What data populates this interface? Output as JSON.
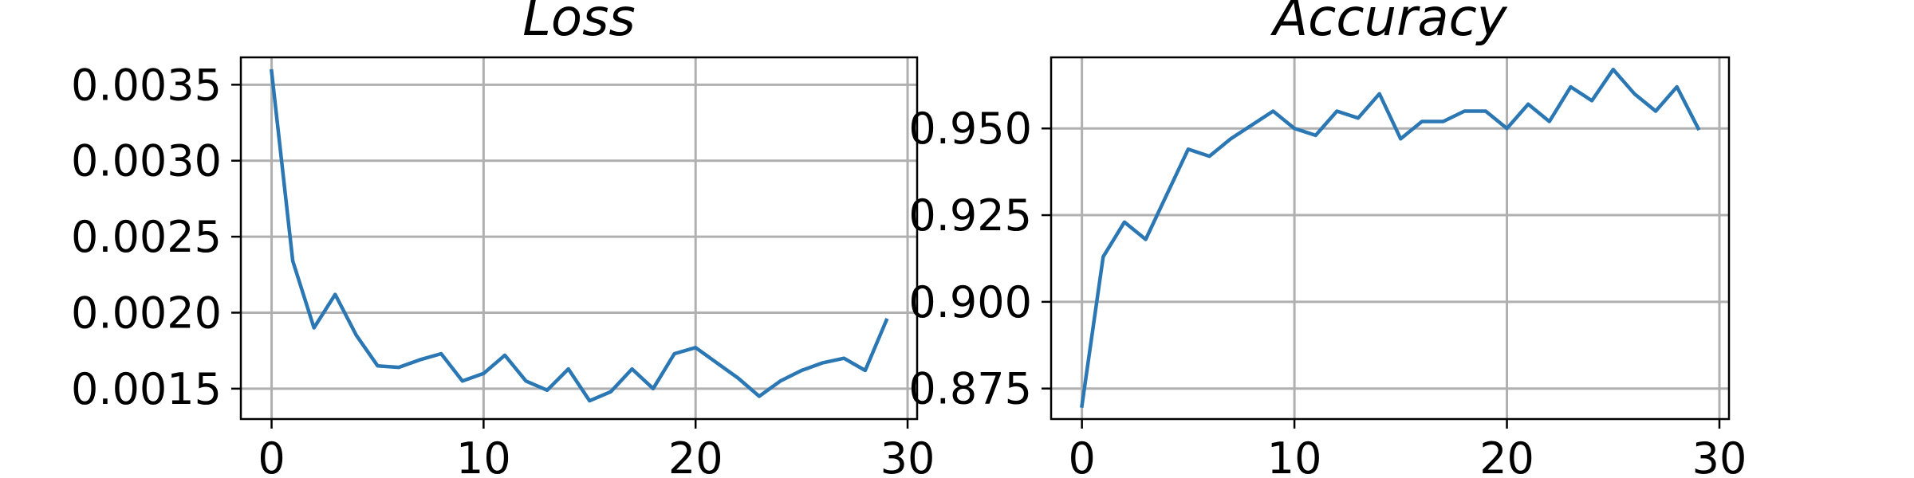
{
  "chart_data": [
    {
      "type": "line",
      "title": "Loss",
      "xlabel": "",
      "ylabel": "",
      "grid": true,
      "color": "#2a77b4",
      "xlim": [
        -1.45,
        30.45
      ],
      "ylim": [
        0.0013,
        0.00368
      ],
      "xticks": [
        0,
        10,
        20,
        30
      ],
      "xtick_labels": [
        "0",
        "10",
        "20",
        "30"
      ],
      "yticks": [
        0.0015,
        0.002,
        0.0025,
        0.003,
        0.0035
      ],
      "ytick_labels": [
        "0.0015",
        "0.0020",
        "0.0025",
        "0.0030",
        "0.0035"
      ],
      "x": [
        0,
        1,
        2,
        3,
        4,
        5,
        6,
        7,
        8,
        9,
        10,
        11,
        12,
        13,
        14,
        15,
        16,
        17,
        18,
        19,
        20,
        21,
        22,
        23,
        24,
        25,
        26,
        27,
        28,
        29
      ],
      "y": [
        0.00359,
        0.00234,
        0.0019,
        0.00212,
        0.00185,
        0.00165,
        0.00164,
        0.00169,
        0.00173,
        0.00155,
        0.0016,
        0.00172,
        0.00155,
        0.00149,
        0.00163,
        0.00142,
        0.00148,
        0.00163,
        0.0015,
        0.00173,
        0.00177,
        0.00167,
        0.00157,
        0.00145,
        0.00155,
        0.00162,
        0.00167,
        0.0017,
        0.00162,
        0.00195
      ]
    },
    {
      "type": "line",
      "title": "Accuracy",
      "xlabel": "",
      "ylabel": "",
      "grid": true,
      "color": "#2a77b4",
      "xlim": [
        -1.45,
        30.45
      ],
      "ylim": [
        0.8662,
        0.9705
      ],
      "xticks": [
        0,
        10,
        20,
        30
      ],
      "xtick_labels": [
        "0",
        "10",
        "20",
        "30"
      ],
      "yticks": [
        0.875,
        0.9,
        0.925,
        0.95
      ],
      "ytick_labels": [
        "0.875",
        "0.900",
        "0.925",
        "0.950"
      ],
      "x": [
        0,
        1,
        2,
        3,
        4,
        5,
        6,
        7,
        8,
        9,
        10,
        11,
        12,
        13,
        14,
        15,
        16,
        17,
        18,
        19,
        20,
        21,
        22,
        23,
        24,
        25,
        26,
        27,
        28,
        29
      ],
      "y": [
        0.87,
        0.913,
        0.923,
        0.918,
        0.931,
        0.944,
        0.942,
        0.947,
        0.951,
        0.955,
        0.95,
        0.948,
        0.955,
        0.953,
        0.96,
        0.947,
        0.952,
        0.952,
        0.955,
        0.955,
        0.95,
        0.957,
        0.952,
        0.962,
        0.958,
        0.967,
        0.96,
        0.955,
        0.962,
        0.95
      ]
    }
  ]
}
